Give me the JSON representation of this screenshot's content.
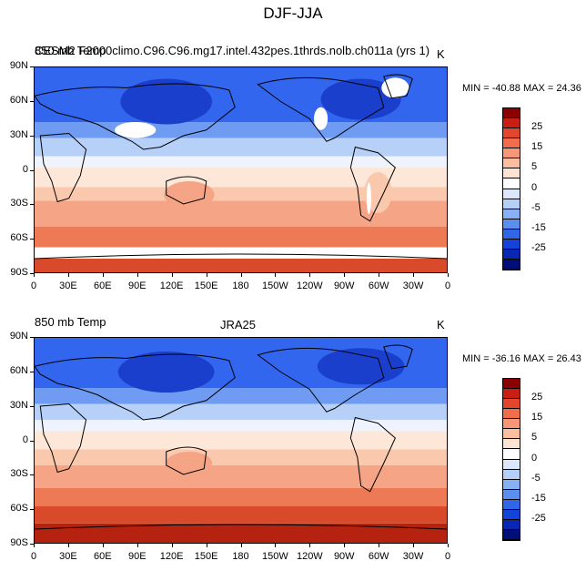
{
  "title": "DJF-JJA",
  "panels": [
    {
      "left_label": "850 mb Temp",
      "center_label": "CESM2 F2000climo.C96.C96.mg17.intel.432pes.1thrds.nolb.ch011a (yrs 1)",
      "right_label": "K",
      "min_max": "MIN = -40.88 MAX = 24.36"
    },
    {
      "left_label": "850 mb Temp",
      "center_label": "JRA25",
      "right_label": "K",
      "min_max": "MIN = -36.16 MAX = 26.43"
    }
  ],
  "lat_labels": [
    "90N",
    "60N",
    "30N",
    "0",
    "30S",
    "60S",
    "90S"
  ],
  "lon_labels": [
    "0",
    "30E",
    "60E",
    "90E",
    "120E",
    "150E",
    "180",
    "150W",
    "120W",
    "90W",
    "60W",
    "30W",
    "0"
  ],
  "colorbar": {
    "labels": [
      "25",
      "15",
      "5",
      "0",
      "-5",
      "-15",
      "-25"
    ],
    "colors": [
      "#8b0000",
      "#c81e14",
      "#e2462d",
      "#f26d4b",
      "#f79777",
      "#fbbf9f",
      "#fde3d2",
      "#ffffff",
      "#dbe8fb",
      "#b5d0f8",
      "#87b1f4",
      "#5a8ff0",
      "#3266e8",
      "#1343d8",
      "#0828b4",
      "#000e78"
    ]
  },
  "map_colors": {
    "deep_blue": "#1a3fcc",
    "blue": "#3366ee",
    "mid_blue": "#6f9cf2",
    "light_blue": "#b7d0f8",
    "pale": "#eef3fd",
    "cream": "#fde7d8",
    "peach": "#f9c8ad",
    "salmon": "#f5a585",
    "orange": "#ee7a55",
    "red": "#d94a2a",
    "dark_red": "#b52310",
    "missing": "#ffffff",
    "coast": "#000000"
  }
}
